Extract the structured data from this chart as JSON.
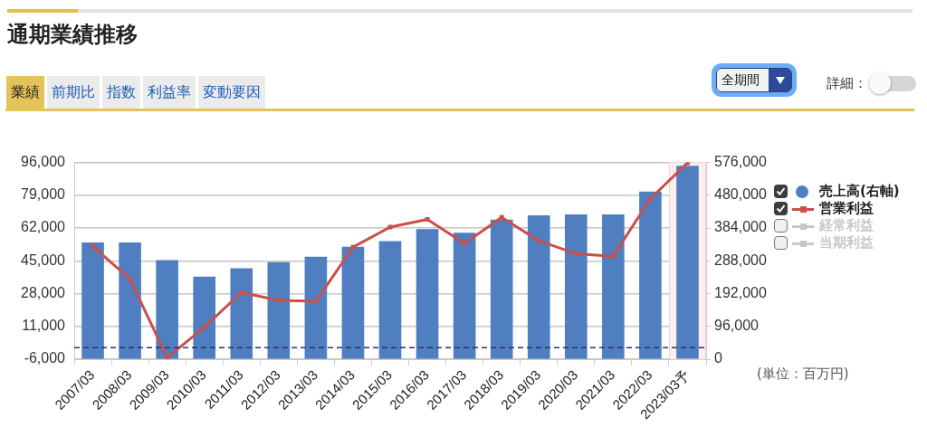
{
  "chart_data": {
    "type": "bar",
    "title": "通期業績推移",
    "categories": [
      "2007/03",
      "2008/03",
      "2009/03",
      "2010/03",
      "2011/03",
      "2012/03",
      "2013/03",
      "2014/03",
      "2015/03",
      "2016/03",
      "2017/03",
      "2018/03",
      "2019/03",
      "2020/03",
      "2021/03",
      "2022/03",
      "2023/03予"
    ],
    "series": [
      {
        "name": "売上高(右軸)",
        "axis": "y2",
        "color": "#4f7fc0",
        "values": [
          342000,
          342000,
          290000,
          242000,
          266000,
          284000,
          300000,
          329000,
          346000,
          381000,
          370000,
          409000,
          421000,
          424000,
          424000,
          491000,
          566000
        ]
      },
      {
        "name": "営業利益",
        "type": "line",
        "color": "#c8504d",
        "values": [
          52500,
          35600,
          -5200,
          10600,
          28600,
          24500,
          24000,
          52100,
          62500,
          66500,
          54000,
          67500,
          55400,
          48700,
          47400,
          77200,
          95800
        ]
      },
      {
        "name": "経常利益",
        "type": "line",
        "color": "#c8c8c8",
        "values": [
          null,
          null,
          null,
          null,
          null,
          null,
          null,
          null,
          null,
          null,
          null,
          null,
          null,
          null,
          null,
          null,
          null
        ]
      },
      {
        "name": "当期利益",
        "type": "line",
        "color": "#c8c8c8",
        "values": [
          null,
          null,
          null,
          null,
          null,
          null,
          null,
          null,
          null,
          null,
          null,
          null,
          null,
          null,
          null,
          null,
          null
        ]
      }
    ],
    "ylim": [
      -6000,
      96000
    ],
    "yticks": [
      {
        "value": -6000,
        "label": "-6,000"
      },
      {
        "value": 11000,
        "label": "11,000"
      },
      {
        "value": 28000,
        "label": "28,000"
      },
      {
        "value": 45000,
        "label": "45,000"
      },
      {
        "value": 62000,
        "label": "62,000"
      },
      {
        "value": 79000,
        "label": "79,000"
      },
      {
        "value": 96000,
        "label": "96,000"
      }
    ],
    "y2lim": [
      0,
      576000
    ],
    "y2ticks": [
      0,
      {
        "value": 96000,
        "label": "96,000"
      },
      {
        "value": 192000,
        "label": "192,000"
      },
      {
        "value": 288000,
        "label": "288,000"
      },
      {
        "value": 384000,
        "label": "384,000"
      },
      {
        "value": 480000,
        "label": "480,000"
      },
      {
        "value": 576000,
        "label": "576,000"
      }
    ],
    "ref_lines": [
      {
        "axis": "y",
        "value": 0,
        "color": "#2e3070",
        "line_style": "dashed"
      }
    ],
    "bands": [
      {
        "axis": "x",
        "from": "2023/03予",
        "to": "2023/03予",
        "color": "#fdeeee"
      }
    ],
    "annotations": [
      "(単位：百万円)",
      "業績",
      "前期比",
      "指数",
      "利益率",
      "変動要因",
      "全期間",
      "詳細："
    ],
    "grid": "y",
    "legend": "right",
    "marker": "square",
    "line_style": "solid"
  }
}
